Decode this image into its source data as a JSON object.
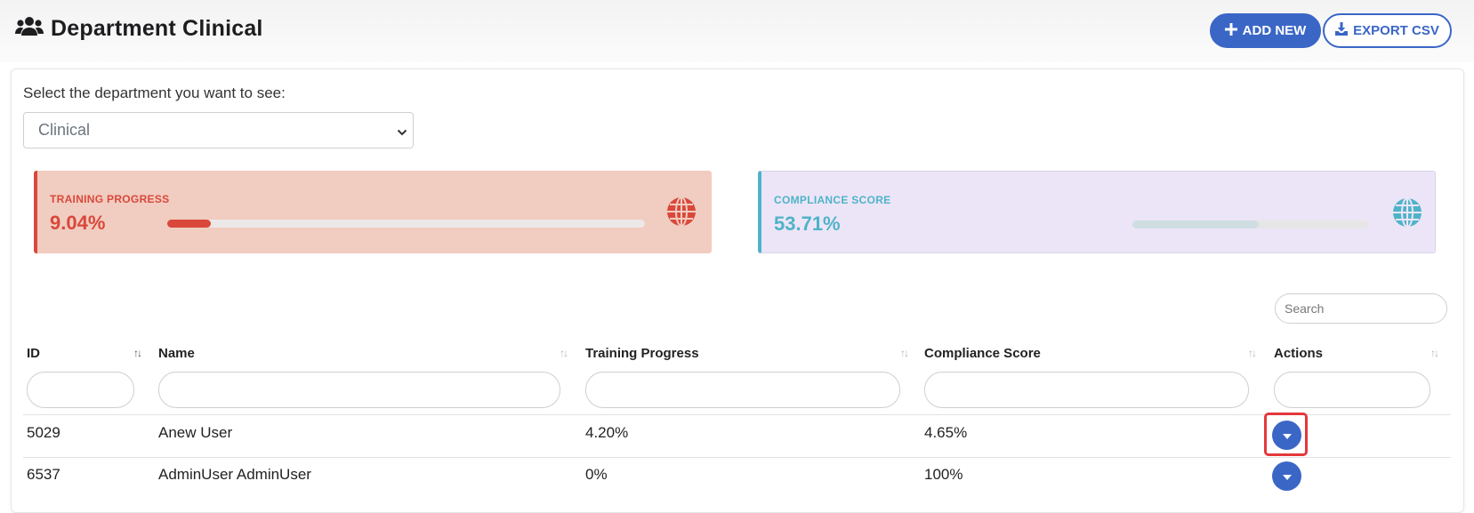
{
  "header": {
    "title": "Department Clinical",
    "add_new_label": "ADD NEW",
    "export_csv_label": "EXPORT CSV"
  },
  "department_select": {
    "label": "Select the department you want to see:",
    "selected": "Clinical"
  },
  "stats": {
    "training": {
      "label": "TRAINING PROGRESS",
      "value": "9.04%",
      "progress_percent": 9.04,
      "color": "#d9483b",
      "icon": "globe-icon"
    },
    "compliance": {
      "label": "COMPLIANCE SCORE",
      "value": "53.71%",
      "progress_percent": 53.71,
      "color": "#4fb3c8",
      "icon": "globe-icon"
    }
  },
  "table": {
    "search_placeholder": "Search",
    "columns": [
      "ID",
      "Name",
      "Training Progress",
      "Compliance Score",
      "Actions"
    ],
    "rows": [
      {
        "id": "5029",
        "name": "Anew User",
        "training": "4.20%",
        "compliance": "4.65%"
      },
      {
        "id": "6537",
        "name": "AdminUser AdminUser",
        "training": "0%",
        "compliance": "100%"
      }
    ]
  },
  "colors": {
    "primary": "#3a66c6",
    "highlight": "#e5383b"
  }
}
